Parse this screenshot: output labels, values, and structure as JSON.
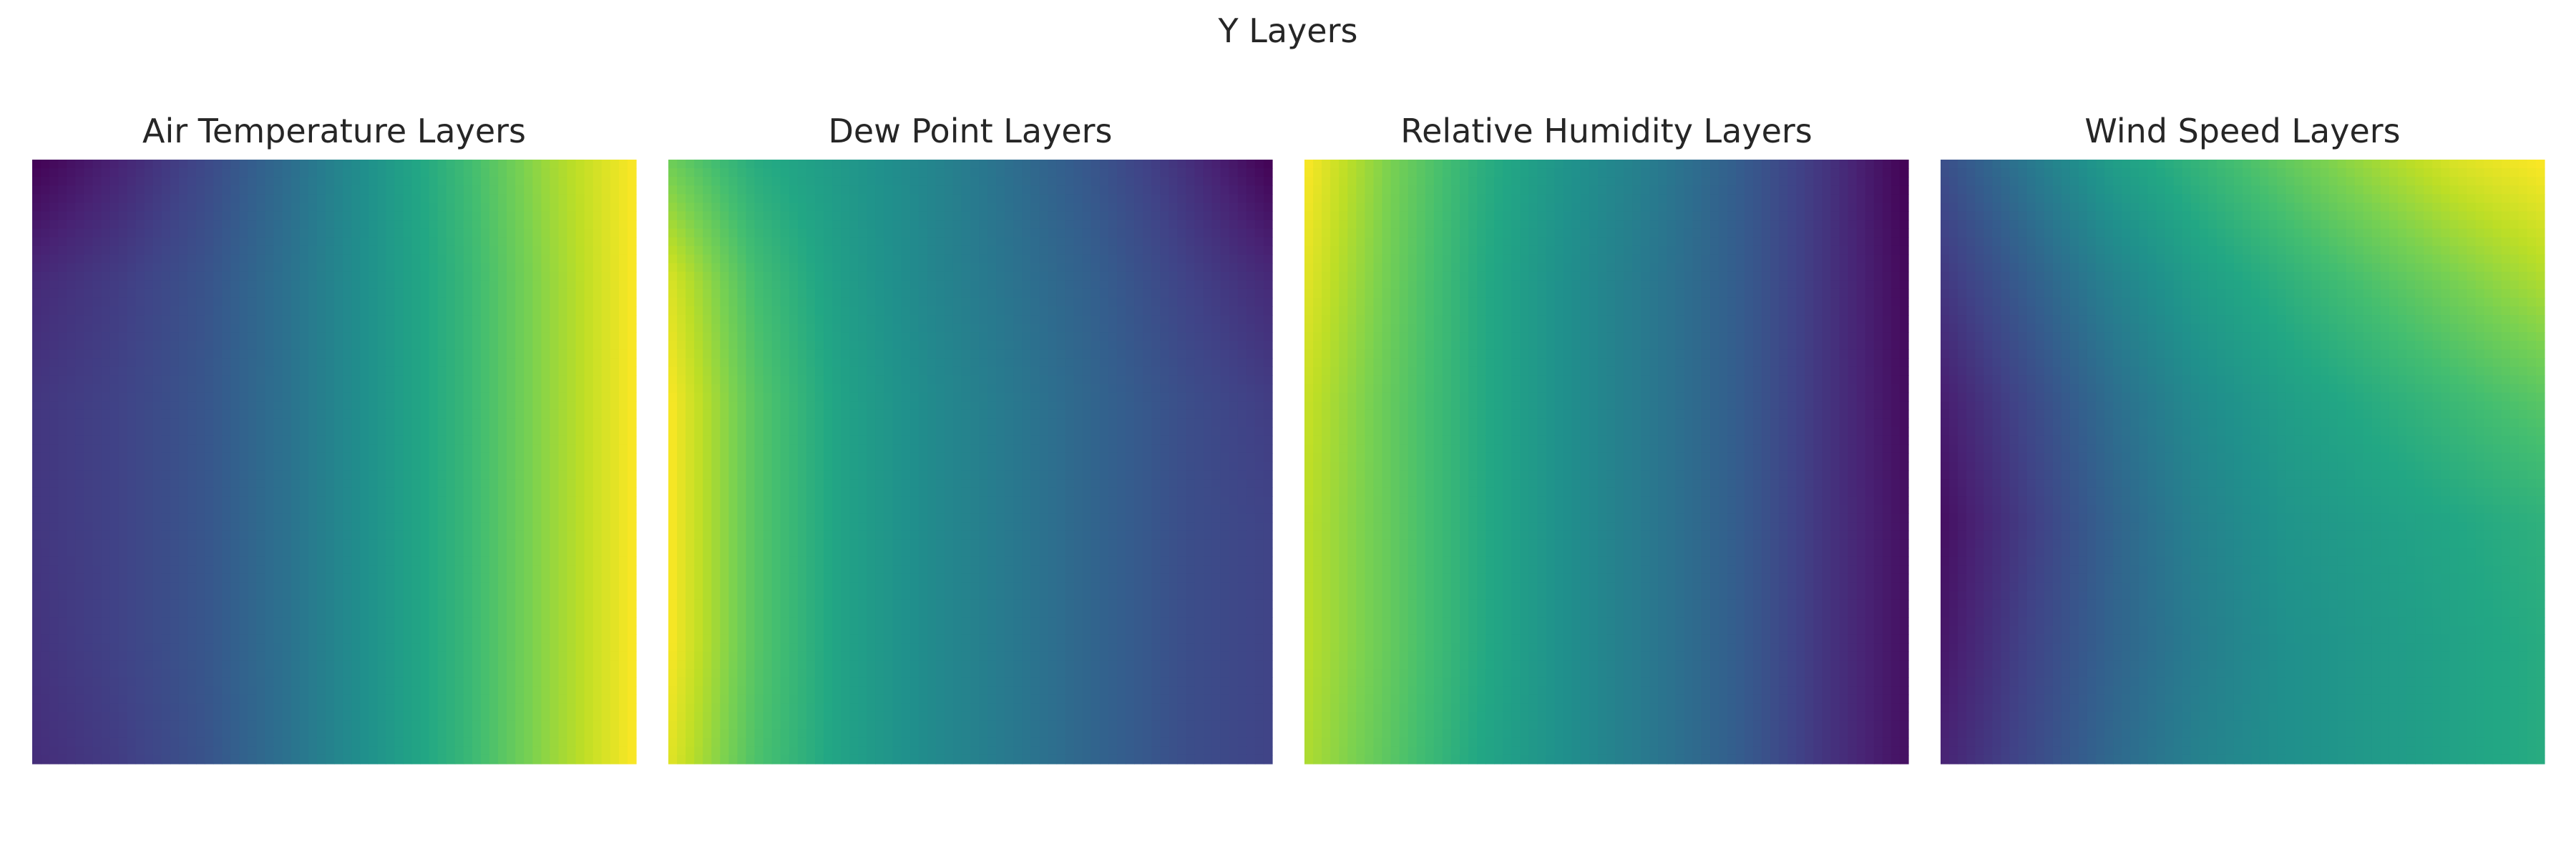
{
  "title": "Y Layers",
  "chart_data": [
    {
      "type": "heatmap",
      "title": "Air Temperature Layers",
      "colormap": "viridis",
      "axes_visible": false,
      "grid": false,
      "value_range": [
        0,
        1
      ],
      "rows": [
        [
          0.0,
          0.1,
          0.22,
          0.36,
          0.52,
          0.68,
          0.86,
          1.0
        ],
        [
          0.12,
          0.18,
          0.26,
          0.38,
          0.52,
          0.66,
          0.84,
          1.0
        ],
        [
          0.16,
          0.2,
          0.27,
          0.38,
          0.52,
          0.66,
          0.84,
          1.0
        ],
        [
          0.16,
          0.2,
          0.27,
          0.38,
          0.52,
          0.66,
          0.84,
          1.0
        ],
        [
          0.15,
          0.2,
          0.27,
          0.38,
          0.52,
          0.66,
          0.84,
          1.0
        ],
        [
          0.13,
          0.18,
          0.26,
          0.38,
          0.52,
          0.66,
          0.84,
          1.0
        ]
      ]
    },
    {
      "type": "heatmap",
      "title": "Dew Point Layers",
      "colormap": "viridis",
      "axes_visible": false,
      "grid": false,
      "value_range": [
        0,
        1
      ],
      "rows": [
        [
          0.78,
          0.62,
          0.54,
          0.46,
          0.36,
          0.26,
          0.14,
          0.0
        ],
        [
          0.95,
          0.7,
          0.56,
          0.46,
          0.38,
          0.3,
          0.2,
          0.12
        ],
        [
          1.0,
          0.74,
          0.58,
          0.48,
          0.4,
          0.32,
          0.24,
          0.18
        ],
        [
          1.0,
          0.74,
          0.58,
          0.48,
          0.4,
          0.32,
          0.24,
          0.2
        ],
        [
          1.0,
          0.74,
          0.58,
          0.48,
          0.4,
          0.32,
          0.24,
          0.2
        ],
        [
          0.96,
          0.72,
          0.58,
          0.48,
          0.4,
          0.32,
          0.24,
          0.2
        ]
      ]
    },
    {
      "type": "heatmap",
      "title": "Relative Humidity Layers",
      "colormap": "viridis",
      "axes_visible": false,
      "grid": false,
      "value_range": [
        0,
        1
      ],
      "rows": [
        [
          1.0,
          0.8,
          0.64,
          0.52,
          0.42,
          0.3,
          0.16,
          0.0
        ],
        [
          0.96,
          0.78,
          0.62,
          0.5,
          0.4,
          0.3,
          0.16,
          0.02
        ],
        [
          0.92,
          0.76,
          0.62,
          0.5,
          0.4,
          0.3,
          0.16,
          0.03
        ],
        [
          0.9,
          0.76,
          0.62,
          0.5,
          0.4,
          0.3,
          0.16,
          0.04
        ],
        [
          0.9,
          0.76,
          0.62,
          0.5,
          0.4,
          0.3,
          0.16,
          0.04
        ],
        [
          0.88,
          0.74,
          0.6,
          0.5,
          0.4,
          0.3,
          0.16,
          0.04
        ]
      ]
    },
    {
      "type": "heatmap",
      "title": "Wind Speed Layers",
      "colormap": "viridis",
      "axes_visible": false,
      "grid": false,
      "value_range": [
        0,
        1
      ],
      "rows": [
        [
          0.24,
          0.4,
          0.56,
          0.66,
          0.76,
          0.86,
          0.95,
          1.0
        ],
        [
          0.16,
          0.3,
          0.44,
          0.56,
          0.64,
          0.72,
          0.8,
          0.88
        ],
        [
          0.08,
          0.22,
          0.36,
          0.48,
          0.56,
          0.62,
          0.68,
          0.74
        ],
        [
          0.04,
          0.18,
          0.32,
          0.44,
          0.52,
          0.56,
          0.6,
          0.64
        ],
        [
          0.06,
          0.2,
          0.32,
          0.42,
          0.5,
          0.54,
          0.58,
          0.62
        ],
        [
          0.1,
          0.22,
          0.34,
          0.44,
          0.5,
          0.54,
          0.58,
          0.62
        ]
      ]
    }
  ]
}
